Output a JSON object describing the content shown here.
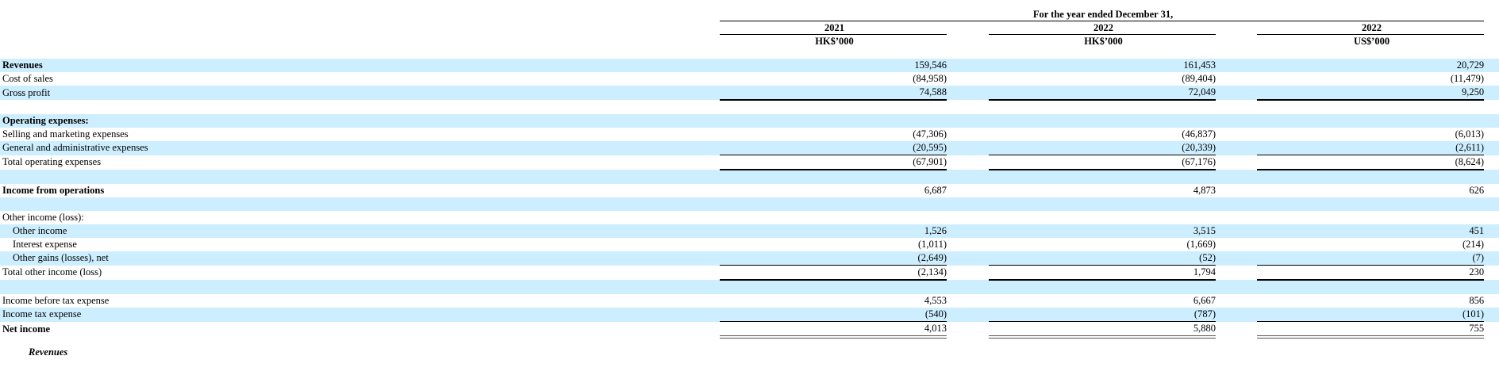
{
  "header": {
    "period": "For the year ended December 31,",
    "columns": [
      {
        "year": "2021",
        "unit": "HK$’000"
      },
      {
        "year": "2022",
        "unit": "HK$’000"
      },
      {
        "year": "2022",
        "unit": "US$’000"
      }
    ]
  },
  "rows": [
    {
      "label": "Revenues",
      "values": [
        "159,546",
        "161,453",
        "20,729"
      ]
    },
    {
      "label": "Cost of sales",
      "values": [
        "(84,958)",
        "(89,404)",
        "(11,479)"
      ]
    },
    {
      "label": "Gross profit",
      "values": [
        "74,588",
        "72,049",
        "9,250"
      ]
    },
    {
      "label": "Operating expenses:"
    },
    {
      "label": "Selling and marketing expenses",
      "values": [
        "(47,306)",
        "(46,837)",
        "(6,013)"
      ]
    },
    {
      "label": "General and administrative expenses",
      "values": [
        "(20,595)",
        "(20,339)",
        "(2,611)"
      ]
    },
    {
      "label": "Total operating expenses",
      "values": [
        "(67,901)",
        "(67,176)",
        "(8,624)"
      ]
    },
    {
      "label": "Income from operations",
      "values": [
        "6,687",
        "4,873",
        "626"
      ]
    },
    {
      "label": "Other income (loss):"
    },
    {
      "label": "Other income",
      "values": [
        "1,526",
        "3,515",
        "451"
      ]
    },
    {
      "label": "Interest expense",
      "values": [
        "(1,011)",
        "(1,669)",
        "(214)"
      ]
    },
    {
      "label": "Other gains (losses), net",
      "values": [
        "(2,649)",
        "(52)",
        "(7)"
      ]
    },
    {
      "label": "Total other income (loss)",
      "values": [
        "(2,134)",
        "1,794",
        "230"
      ]
    },
    {
      "label": "Income before tax expense",
      "values": [
        "4,553",
        "6,667",
        "856"
      ]
    },
    {
      "label": "Income tax expense",
      "values": [
        "(540)",
        "(787)",
        "(101)"
      ]
    },
    {
      "label": "Net income",
      "values": [
        "4,013",
        "5,880",
        "755"
      ]
    }
  ],
  "footer": "Revenues"
}
